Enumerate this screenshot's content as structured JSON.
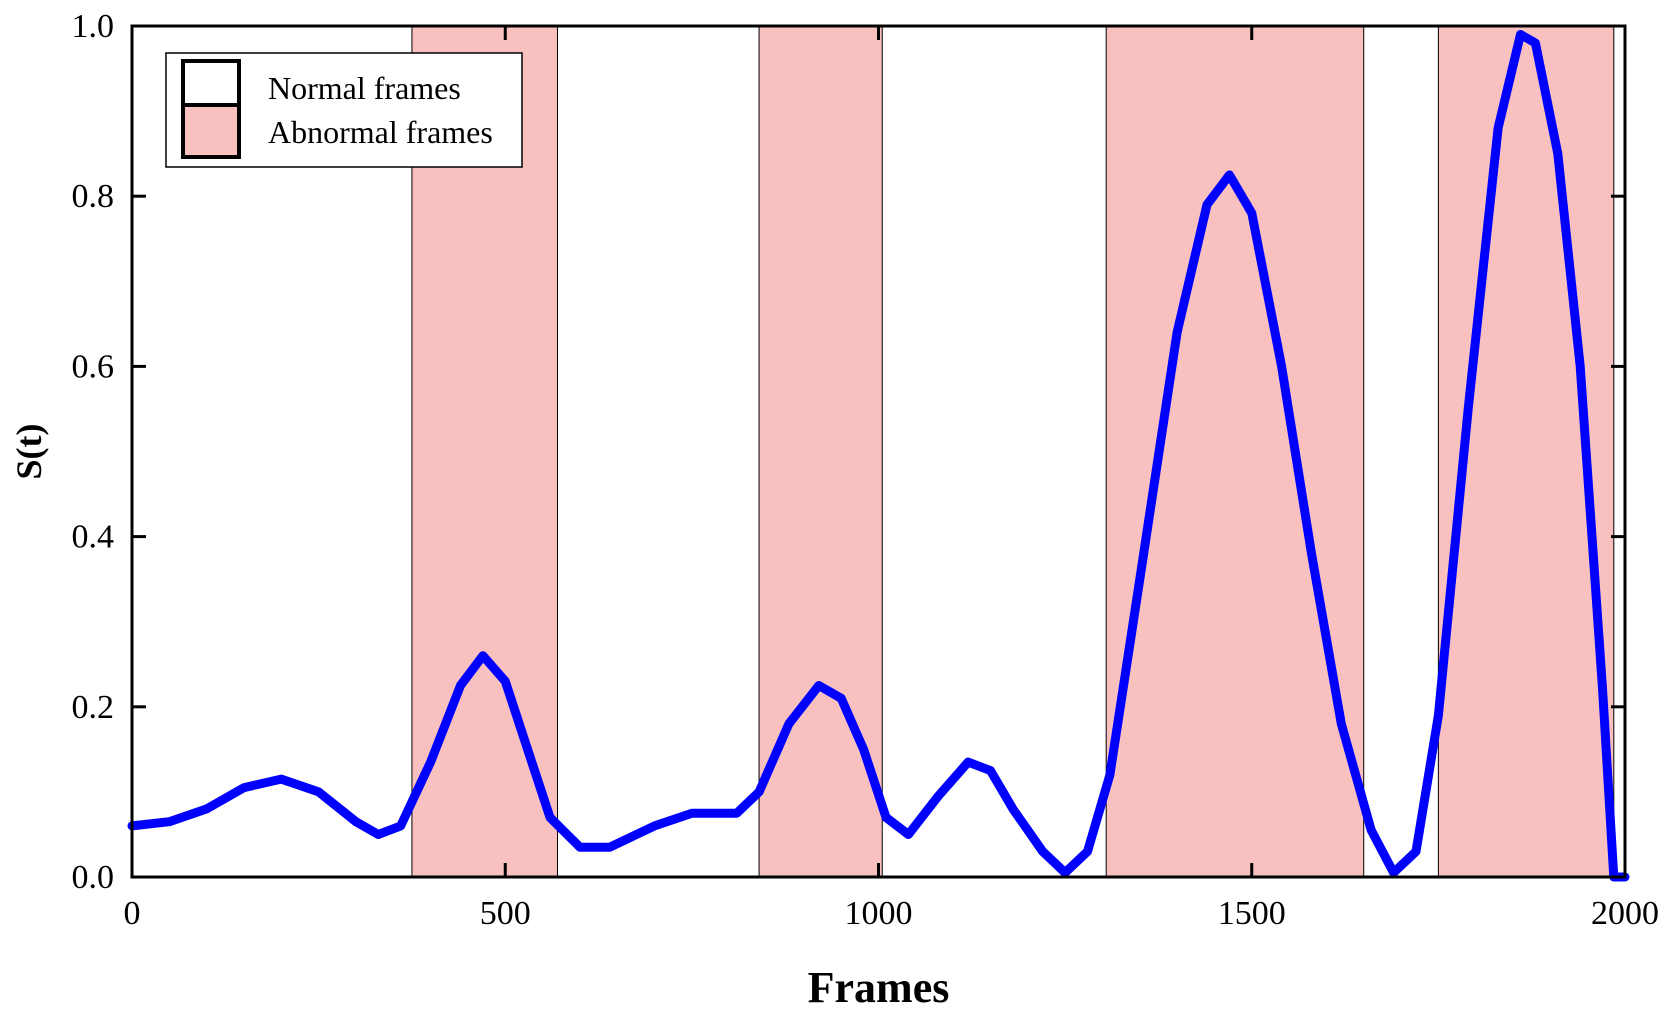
{
  "chart_data": {
    "type": "line",
    "title": "",
    "xlabel": "Frames",
    "ylabel": "S(t)",
    "xlim": [
      0,
      2000
    ],
    "ylim": [
      0,
      1.0
    ],
    "x_ticks": [
      0,
      500,
      1000,
      1500,
      2000
    ],
    "x_tick_labels": [
      "0",
      "500",
      "1000",
      "1500",
      "2000"
    ],
    "y_ticks": [
      0.0,
      0.2,
      0.4,
      0.6,
      0.8,
      1.0
    ],
    "y_tick_labels": [
      "0.0",
      "0.2",
      "0.4",
      "0.6",
      "0.8",
      "1.0"
    ],
    "grid": false,
    "legend": {
      "placement": "top-left",
      "entries": [
        {
          "label": "Normal frames",
          "color": "#ffffff"
        },
        {
          "label": "Abnormal frames",
          "color": "#f9c0c0"
        }
      ]
    },
    "abnormal_regions": [
      [
        375,
        570
      ],
      [
        840,
        1005
      ],
      [
        1305,
        1650
      ],
      [
        1750,
        1985
      ]
    ],
    "series": [
      {
        "color": "#0000ff",
        "x": [
          0,
          50,
          100,
          150,
          200,
          250,
          300,
          330,
          360,
          400,
          440,
          470,
          500,
          530,
          560,
          600,
          640,
          700,
          750,
          780,
          810,
          840,
          880,
          920,
          950,
          980,
          1010,
          1040,
          1080,
          1120,
          1150,
          1180,
          1220,
          1250,
          1280,
          1310,
          1350,
          1400,
          1440,
          1470,
          1500,
          1540,
          1580,
          1620,
          1660,
          1690,
          1720,
          1750,
          1790,
          1830,
          1860,
          1880,
          1910,
          1940,
          1970,
          1985,
          2000
        ],
        "y": [
          0.06,
          0.065,
          0.08,
          0.105,
          0.115,
          0.1,
          0.065,
          0.05,
          0.06,
          0.135,
          0.225,
          0.26,
          0.23,
          0.15,
          0.07,
          0.035,
          0.035,
          0.06,
          0.075,
          0.075,
          0.075,
          0.1,
          0.18,
          0.225,
          0.21,
          0.15,
          0.07,
          0.05,
          0.095,
          0.135,
          0.125,
          0.08,
          0.03,
          0.005,
          0.03,
          0.12,
          0.35,
          0.64,
          0.79,
          0.825,
          0.78,
          0.6,
          0.38,
          0.18,
          0.055,
          0.005,
          0.03,
          0.19,
          0.55,
          0.88,
          0.99,
          0.98,
          0.85,
          0.6,
          0.22,
          0.0,
          0.0
        ]
      }
    ]
  }
}
